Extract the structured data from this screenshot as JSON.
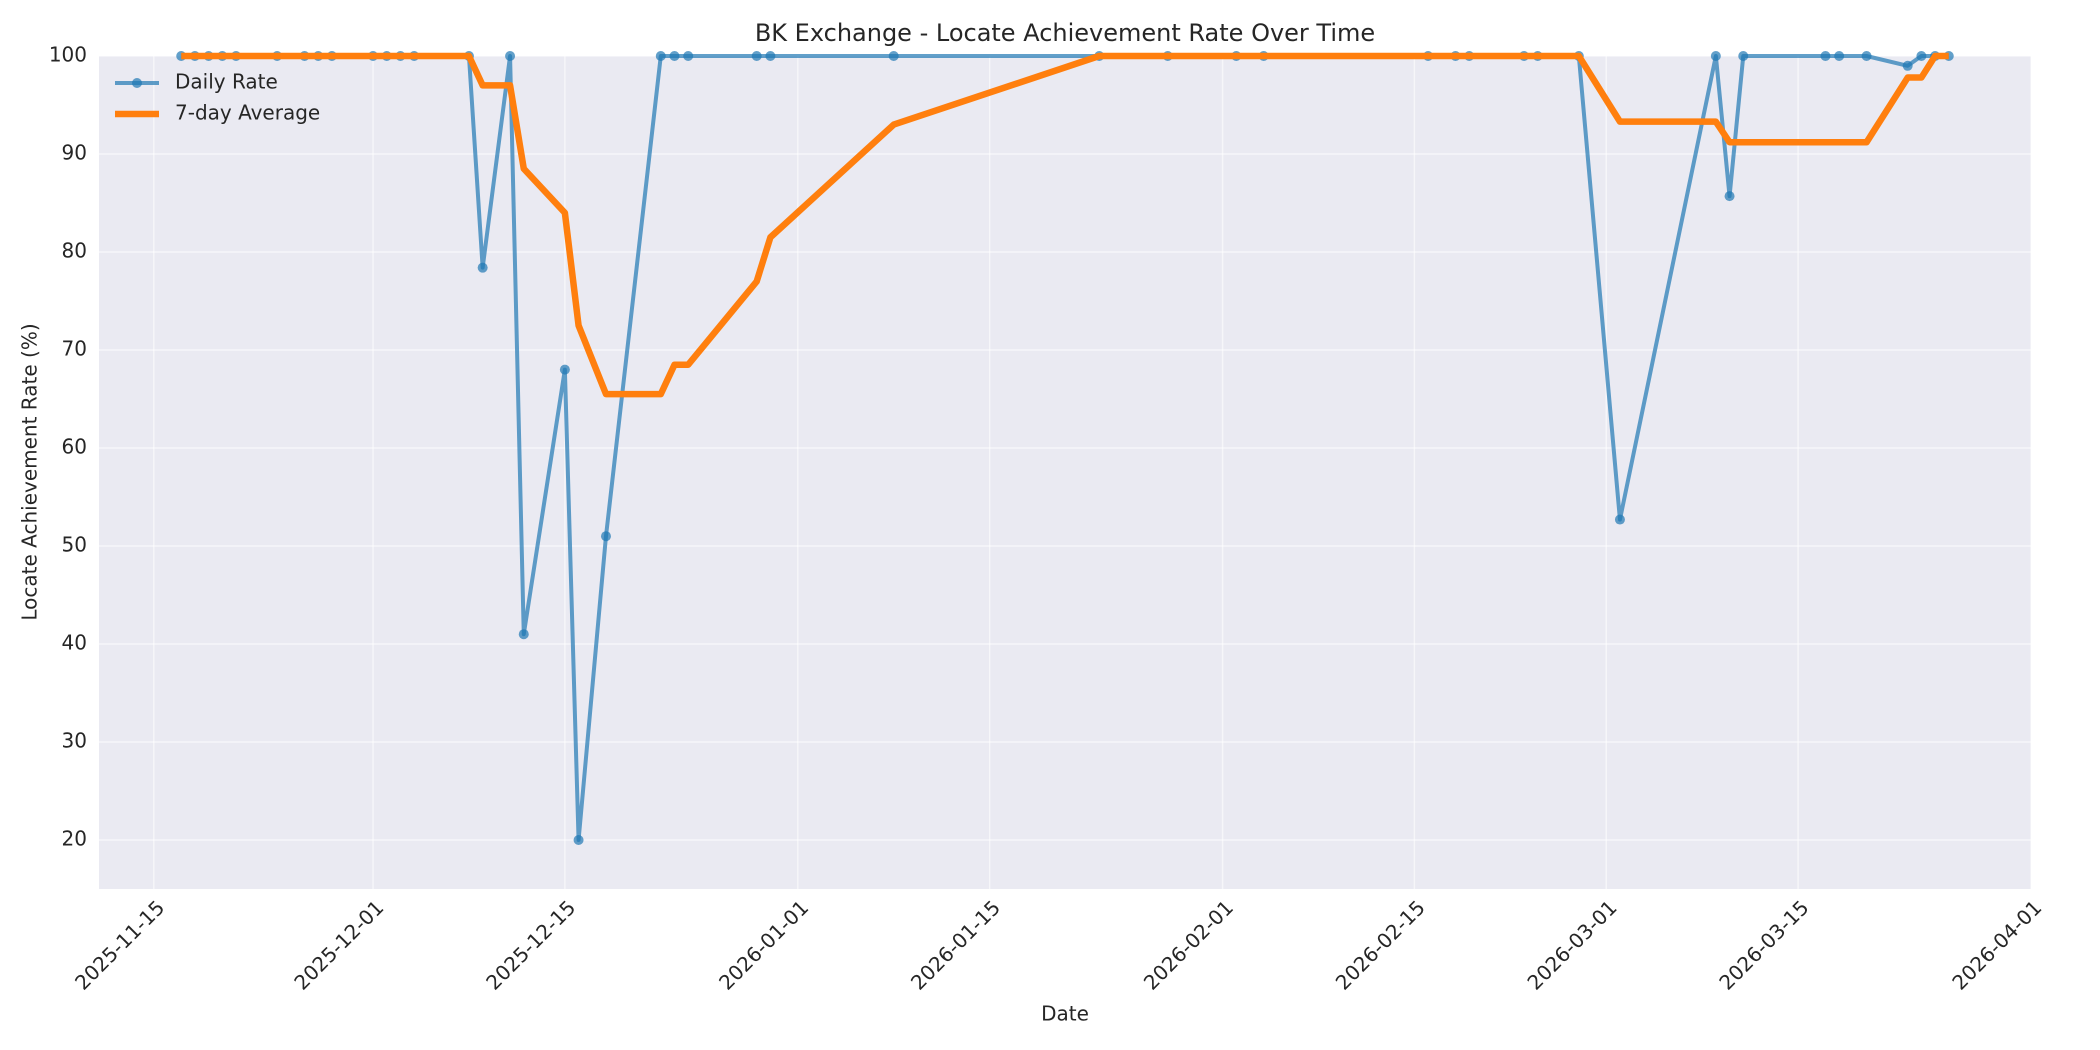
{
  "chart_data": {
    "type": "line",
    "title": "BK Exchange - Locate Achievement Rate Over Time",
    "xlabel": "Date",
    "ylabel": "Locate Achievement Rate (%)",
    "x": [
      "2025-11-17",
      "2025-11-18",
      "2025-11-19",
      "2025-11-20",
      "2025-11-21",
      "2025-11-24",
      "2025-11-26",
      "2025-11-27",
      "2025-11-28",
      "2025-12-01",
      "2025-12-02",
      "2025-12-03",
      "2025-12-04",
      "2025-12-08",
      "2025-12-09",
      "2025-12-11",
      "2025-12-12",
      "2025-12-15",
      "2025-12-16",
      "2025-12-18",
      "2025-12-22",
      "2025-12-23",
      "2025-12-24",
      "2025-12-29",
      "2025-12-30",
      "2026-01-08",
      "2026-01-23",
      "2026-01-28",
      "2026-02-02",
      "2026-02-04",
      "2026-02-16",
      "2026-02-18",
      "2026-02-19",
      "2026-02-23",
      "2026-02-24",
      "2026-02-27",
      "2026-03-02",
      "2026-03-09",
      "2026-03-10",
      "2026-03-11",
      "2026-03-17",
      "2026-03-18",
      "2026-03-20",
      "2026-03-23",
      "2026-03-24",
      "2026-03-25",
      "2026-03-26"
    ],
    "series": [
      {
        "name": "Daily Rate",
        "color": "#1f77b4",
        "opacity": 0.7,
        "markers": true,
        "values": [
          100,
          100,
          100,
          100,
          100,
          100,
          100,
          100,
          100,
          100,
          100,
          100,
          100,
          100,
          78.4,
          100,
          41,
          68,
          20,
          51,
          100,
          100,
          100,
          100,
          100,
          100,
          100,
          100,
          100,
          100,
          100,
          100,
          100,
          100,
          100,
          100,
          52.7,
          100,
          85.7,
          100,
          100,
          100,
          100,
          99,
          100,
          100,
          100
        ]
      },
      {
        "name": "7-day Average",
        "color": "#ff7f0e",
        "opacity": 1,
        "markers": false,
        "values": [
          100,
          100,
          100,
          100,
          100,
          100,
          100,
          100,
          100,
          100,
          100,
          100,
          100,
          100,
          97,
          97,
          88.5,
          84,
          72.5,
          65.5,
          65.5,
          68.5,
          68.5,
          77,
          81.5,
          93,
          100,
          100,
          100,
          100,
          100,
          100,
          100,
          100,
          100,
          100,
          93.3,
          93.3,
          91.2,
          91.2,
          91.2,
          91.2,
          91.2,
          97.8,
          97.8,
          100,
          100
        ]
      }
    ],
    "xlim": [
      "2025-11-11",
      "2026-04-01"
    ],
    "xticks": [
      "2025-11-15",
      "2025-12-01",
      "2025-12-15",
      "2026-01-01",
      "2026-01-15",
      "2026-02-01",
      "2026-02-15",
      "2026-03-01",
      "2026-03-15",
      "2026-04-01"
    ],
    "ylim": [
      15,
      100
    ],
    "yticks": [
      20,
      30,
      40,
      50,
      60,
      70,
      80,
      90,
      100
    ],
    "grid": true,
    "legend": "upper left"
  }
}
